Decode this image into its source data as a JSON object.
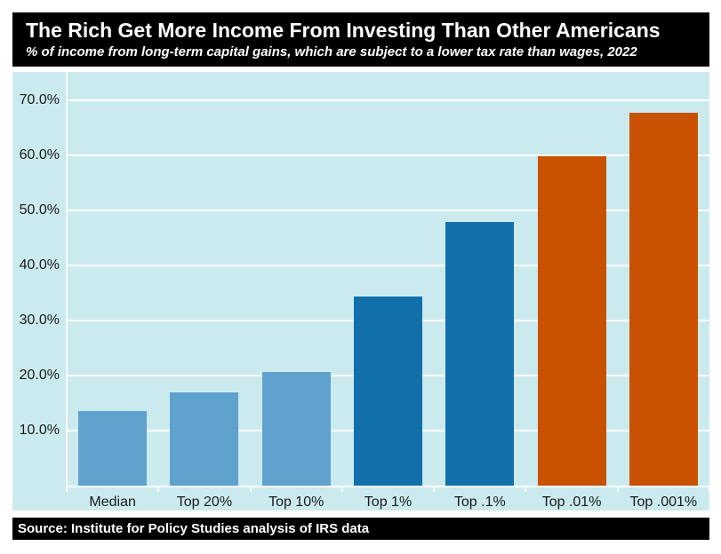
{
  "header": {
    "title": "The Rich Get More Income From Investing Than Other Americans",
    "subtitle": "% of income from long-term capital gains, which are subject to a lower tax rate than wages, 2022"
  },
  "footer": {
    "source": "Source: Institute for Policy Studies analysis of IRS data"
  },
  "colors": {
    "light_blue": "#5FA2CE",
    "dark_blue": "#1170AA",
    "orange": "#C85200",
    "plot_background": "#CBEAEE",
    "panel_background": "#000000",
    "panel_text": "#FFFFFF",
    "gridline": "#FFFFFF"
  },
  "chart_data": {
    "type": "bar",
    "title": "The Rich Get More Income From Investing Than Other Americans",
    "subtitle": "% of income from long-term capital gains, which are subject to a lower tax rate than wages, 2022",
    "xlabel": "",
    "ylabel": "",
    "categories": [
      "Median",
      "Top 20%",
      "Top 10%",
      "Top 1%",
      "Top .1%",
      "Top .01%",
      "Top .001%"
    ],
    "values": [
      13.6,
      17.0,
      20.6,
      34.3,
      47.9,
      59.9,
      67.7
    ],
    "bar_colors": [
      "#5FA2CE",
      "#5FA2CE",
      "#5FA2CE",
      "#1170AA",
      "#1170AA",
      "#C85200",
      "#C85200"
    ],
    "y_ticks": [
      10,
      20,
      30,
      40,
      50,
      60,
      70
    ],
    "y_tick_labels": [
      "10.0%",
      "20.0%",
      "30.0%",
      "40.0%",
      "50.0%",
      "60.0%",
      "70.0%"
    ],
    "ylim": [
      0,
      74.5
    ],
    "grid": true,
    "legend": "none"
  }
}
